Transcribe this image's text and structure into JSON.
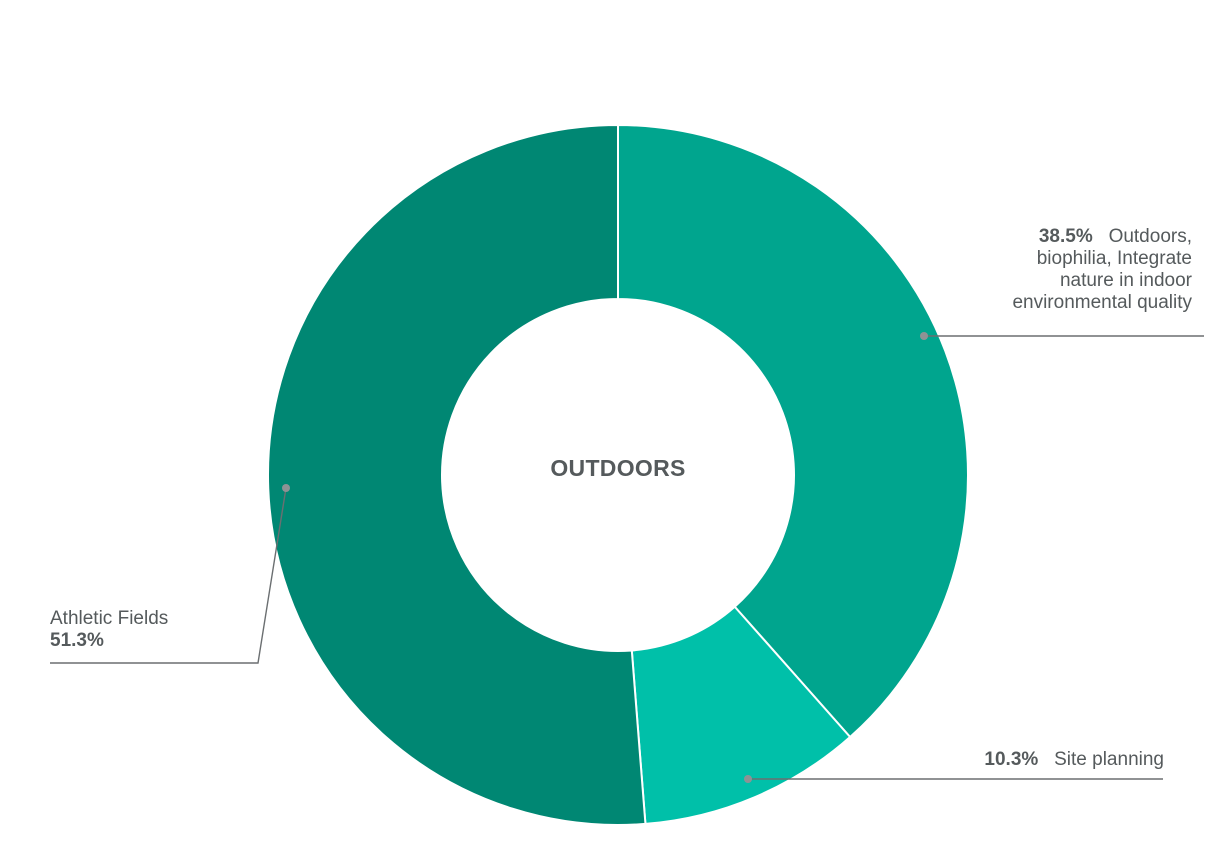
{
  "chart_data": {
    "type": "pie",
    "center_label": "OUTDOORS",
    "start_angle_deg": 0,
    "direction": "clockwise",
    "slices": [
      {
        "pct_label": "38.5%",
        "label": "Outdoors, biophilia, Integrate nature in indoor environmental quality",
        "label_lines": [
          "Outdoors,",
          "biophilia, Integrate",
          "nature in indoor",
          "environmental quality"
        ],
        "value": 38.5,
        "color": "#00a58e"
      },
      {
        "pct_label": "10.3%",
        "label": "Site planning",
        "value": 10.3,
        "color": "#00c0a9"
      },
      {
        "pct_label": "51.3%",
        "label": "Athletic Fields",
        "value": 51.3,
        "color": "#008773"
      }
    ],
    "leader_color": "#6b6f71"
  }
}
